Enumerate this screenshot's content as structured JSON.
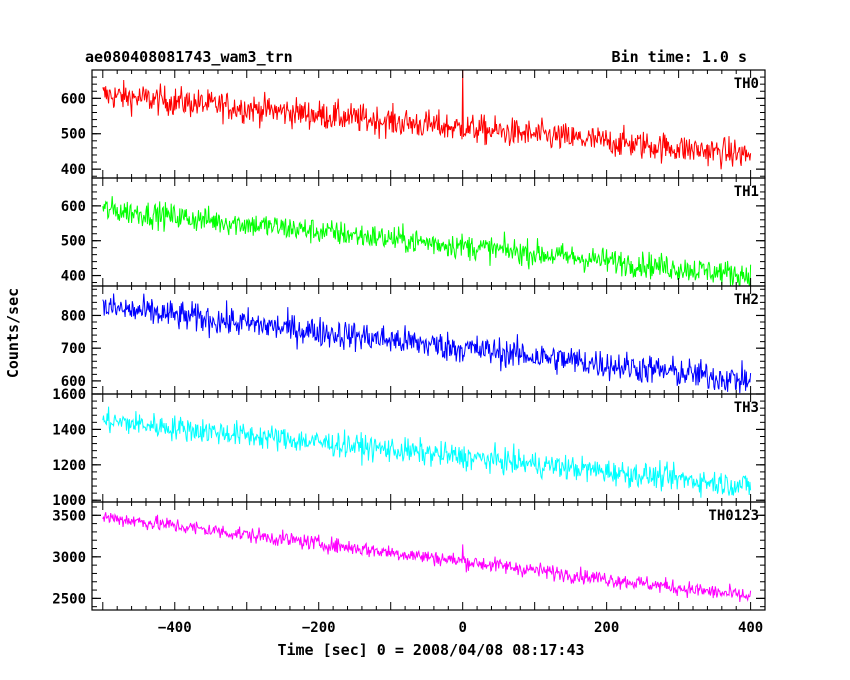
{
  "chart_data": {
    "type": "line",
    "title": "ae080408081743_wam3_trn",
    "subtitle": "Bin time: 1.0 s",
    "xlabel": "Time [sec] 0 = 2008/04/08 08:17:43",
    "ylabel": "Counts/sec",
    "xlim": [
      -515,
      420
    ],
    "x_ticks": [
      -400,
      -200,
      0,
      200,
      400
    ],
    "x_tick_labels": [
      "−400",
      "−200",
      "0",
      "200",
      "400"
    ],
    "x_start": -500,
    "x_end": 400,
    "bin": 1.0,
    "grid": false,
    "panels": [
      {
        "name": "TH0",
        "color": "#ff0000",
        "ylim": [
          375,
          680
        ],
        "yticks": [
          400,
          500,
          600
        ],
        "ytick_labels": [
          "400",
          "500",
          "600"
        ],
        "trend_start": 610,
        "trend_end": 440,
        "noise": 38,
        "spikes": [
          {
            "x": 0,
            "value": 680
          }
        ]
      },
      {
        "name": "TH1",
        "color": "#00ff00",
        "ylim": [
          370,
          680
        ],
        "yticks": [
          400,
          500,
          600
        ],
        "ytick_labels": [
          "400",
          "500",
          "600"
        ],
        "trend_start": 590,
        "trend_end": 400,
        "noise": 34,
        "spikes": []
      },
      {
        "name": "TH2",
        "color": "#0000ff",
        "ylim": [
          560,
          890
        ],
        "yticks": [
          600,
          700,
          800
        ],
        "ytick_labels": [
          "600",
          "700",
          "800"
        ],
        "trend_start": 825,
        "trend_end": 600,
        "noise": 42,
        "spikes": []
      },
      {
        "name": "TH3",
        "color": "#00ffff",
        "ylim": [
          990,
          1600
        ],
        "yticks": [
          1000,
          1200,
          1400,
          1600
        ],
        "ytick_labels": [
          "1000",
          "1200",
          "1400",
          "1600"
        ],
        "trend_start": 1450,
        "trend_end": 1080,
        "noise": 65,
        "spikes": []
      },
      {
        "name": "TH0123",
        "color": "#ff00ff",
        "ylim": [
          2360,
          3660
        ],
        "yticks": [
          2500,
          3000,
          3500
        ],
        "ytick_labels": [
          "2500",
          "3000",
          "3500"
        ],
        "trend_start": 3480,
        "trend_end": 2520,
        "noise": 85,
        "spikes": [
          {
            "x": 0,
            "value": 3150
          }
        ]
      }
    ]
  }
}
